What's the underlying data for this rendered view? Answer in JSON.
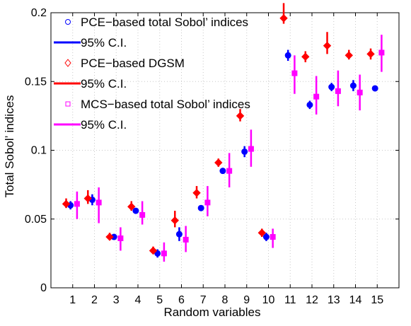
{
  "chart_data": {
    "type": "scatter",
    "title": "",
    "xlabel": "Random variables",
    "ylabel": "Total Sobol’ indices",
    "xlim": [
      0,
      16
    ],
    "ylim": [
      0,
      0.2
    ],
    "x": [
      1,
      2,
      3,
      4,
      5,
      6,
      7,
      8,
      9,
      10,
      11,
      12,
      13,
      14,
      15
    ],
    "xticks": [
      "1",
      "2",
      "3",
      "4",
      "5",
      "6",
      "7",
      "8",
      "9",
      "10",
      "11",
      "12",
      "13",
      "14",
      "15"
    ],
    "yticks": [
      {
        "value": 0,
        "label": "0"
      },
      {
        "value": 0.05,
        "label": "0.05"
      },
      {
        "value": 0.1,
        "label": "0.1"
      },
      {
        "value": 0.15,
        "label": "0.15"
      },
      {
        "value": 0.2,
        "label": "0.2"
      }
    ],
    "grid": true,
    "legend_position": "top-left",
    "series": [
      {
        "name": "PCE−based total Sobol’ indices",
        "ci_name": "95% C.I.",
        "marker": "circle",
        "color": "#0000ff",
        "values": [
          0.06,
          0.064,
          0.037,
          0.056,
          0.025,
          0.039,
          0.058,
          0.085,
          0.099,
          0.037,
          0.169,
          0.133,
          0.146,
          0.147,
          0.145
        ],
        "ci_low": [
          0.057,
          0.06,
          0.035,
          0.054,
          0.022,
          0.034,
          0.056,
          0.083,
          0.095,
          0.034,
          0.165,
          0.13,
          0.143,
          0.143,
          0.144
        ],
        "ci_high": [
          0.063,
          0.068,
          0.039,
          0.058,
          0.028,
          0.044,
          0.06,
          0.087,
          0.103,
          0.04,
          0.173,
          0.136,
          0.149,
          0.151,
          0.146
        ]
      },
      {
        "name": "PCE−based DGSM",
        "ci_name": "95% C.I.",
        "marker": "diamond",
        "color": "#ff0000",
        "values": [
          0.061,
          0.065,
          0.037,
          0.059,
          0.027,
          0.049,
          0.069,
          0.091,
          0.125,
          0.04,
          0.196,
          0.168,
          0.176,
          0.169,
          0.17
        ],
        "ci_low": [
          0.058,
          0.061,
          0.035,
          0.056,
          0.025,
          0.044,
          0.065,
          0.088,
          0.121,
          0.037,
          0.192,
          0.164,
          0.17,
          0.166,
          0.166
        ],
        "ci_high": [
          0.065,
          0.071,
          0.04,
          0.063,
          0.03,
          0.056,
          0.074,
          0.094,
          0.13,
          0.043,
          0.207,
          0.172,
          0.186,
          0.173,
          0.174
        ]
      },
      {
        "name": "MCS−based total Sobol’ indices",
        "ci_name": "95% C.I.",
        "marker": "square",
        "color": "#ff00ff",
        "values": [
          0.061,
          0.062,
          0.036,
          0.053,
          0.025,
          0.035,
          0.062,
          0.085,
          0.101,
          0.037,
          0.156,
          0.139,
          0.143,
          0.142,
          0.171
        ],
        "ci_low": [
          0.05,
          0.047,
          0.027,
          0.046,
          0.019,
          0.026,
          0.052,
          0.073,
          0.088,
          0.029,
          0.141,
          0.126,
          0.132,
          0.129,
          0.157
        ],
        "ci_high": [
          0.07,
          0.073,
          0.044,
          0.063,
          0.033,
          0.045,
          0.074,
          0.098,
          0.115,
          0.043,
          0.169,
          0.154,
          0.158,
          0.155,
          0.184
        ]
      }
    ]
  }
}
